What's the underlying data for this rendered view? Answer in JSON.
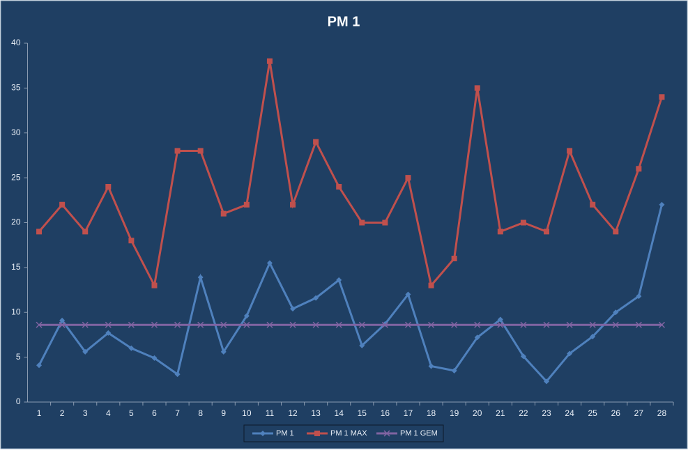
{
  "chart_data": {
    "type": "line",
    "title": "PM 1",
    "categories": [
      "1",
      "2",
      "3",
      "4",
      "5",
      "6",
      "7",
      "8",
      "9",
      "10",
      "11",
      "12",
      "13",
      "14",
      "15",
      "16",
      "17",
      "18",
      "19",
      "20",
      "21",
      "22",
      "23",
      "24",
      "25",
      "26",
      "27",
      "28"
    ],
    "series": [
      {
        "name": "PM 1",
        "color": "#4f81bd",
        "marker": "diamond",
        "values": [
          4.1,
          9.1,
          5.6,
          7.7,
          6.0,
          4.9,
          3.1,
          13.9,
          5.6,
          9.6,
          15.5,
          10.4,
          11.6,
          13.6,
          6.3,
          8.7,
          12.0,
          4.0,
          3.5,
          7.2,
          9.2,
          5.1,
          2.3,
          5.4,
          7.3,
          10.0,
          11.8,
          22.0
        ]
      },
      {
        "name": "PM 1 MAX",
        "color": "#c0504d",
        "marker": "square",
        "values": [
          19,
          22,
          19,
          24,
          18,
          13,
          28,
          28,
          21,
          22,
          38,
          22,
          29,
          24,
          20,
          20,
          25,
          13,
          16,
          35,
          19,
          20,
          19,
          28,
          22,
          19,
          26,
          34
        ]
      },
      {
        "name": "PM 1 GEM",
        "color": "#8064a2",
        "marker": "x",
        "values": [
          8.6,
          8.6,
          8.6,
          8.6,
          8.6,
          8.6,
          8.6,
          8.6,
          8.6,
          8.6,
          8.6,
          8.6,
          8.6,
          8.6,
          8.6,
          8.6,
          8.6,
          8.6,
          8.6,
          8.6,
          8.6,
          8.6,
          8.6,
          8.6,
          8.6,
          8.6,
          8.6,
          8.6
        ]
      }
    ],
    "ylim": [
      0,
      40
    ],
    "yticks": [
      0,
      5,
      10,
      15,
      20,
      25,
      30,
      35,
      40
    ],
    "grid": false,
    "legend": "bottom"
  }
}
